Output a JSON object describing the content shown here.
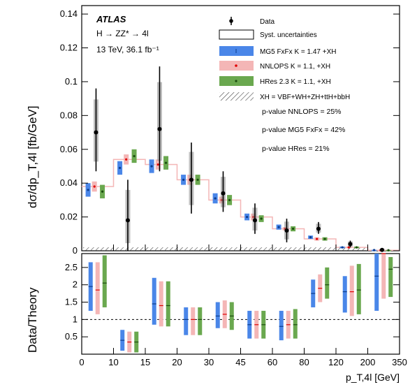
{
  "chart_data": [
    {
      "type": "scatter",
      "panel": "upper",
      "ylabel": "dσ/dp_T,4l [fb/GeV]",
      "ylim": [
        0,
        0.145
      ],
      "yticks": [
        0,
        0.02,
        0.04,
        0.06,
        0.08,
        0.1,
        0.12,
        0.14
      ],
      "ytick_labels": [
        "0",
        "0.02",
        "0.04",
        "0.06",
        "0.08",
        "0.1",
        "0.12",
        "0.14"
      ],
      "x_bin_edges": [
        0,
        10,
        15,
        20,
        30,
        45,
        60,
        80,
        120,
        200,
        350
      ],
      "annotations": {
        "atlas": "ATLAS",
        "process": "H → ZZ* → 4l",
        "energy_lumi": "13 TeV, 36.1 fb⁻¹"
      },
      "legend": [
        {
          "label": "Data",
          "kind": "data"
        },
        {
          "label": "Syst. uncertainties",
          "kind": "box",
          "color": "#ffffff"
        },
        {
          "label": "MG5 FxFx K = 1.47 +XH",
          "kind": "band",
          "color": "#4a86e8"
        },
        {
          "label": "NNLOPS K = 1.1, +XH",
          "kind": "band",
          "color": "#f4b6b6"
        },
        {
          "label": "HRes 2.3 K = 1.1, +XH",
          "kind": "band",
          "color": "#6aa84f"
        },
        {
          "label": "XH = VBF+WH+ZH+ttH+bbH",
          "kind": "hatch",
          "color": "#555555"
        }
      ],
      "pvalues": [
        "p-value NNLOPS = 25%",
        "p-value MG5 FxFx = 42%",
        "p-value HRes = 21%"
      ],
      "series": [
        {
          "name": "Data",
          "values": [
            0.07,
            0.018,
            0.072,
            0.042,
            0.034,
            0.018,
            0.012,
            0.013,
            0.004,
            0.0005
          ],
          "err_low": [
            0.023,
            0.018,
            0.025,
            0.02,
            0.011,
            0.008,
            0.007,
            0.003,
            0.002,
            0.0005
          ],
          "err_high": [
            0.026,
            0.024,
            0.037,
            0.022,
            0.013,
            0.01,
            0.007,
            0.004,
            0.002,
            0.001
          ]
        },
        {
          "name": "MG5 FxFx K = 1.47 +XH",
          "values": [
            0.036,
            0.049,
            0.05,
            0.042,
            0.031,
            0.02,
            0.014,
            0.008,
            0.002,
            0.0004
          ],
          "err": [
            0.004,
            0.004,
            0.004,
            0.003,
            0.003,
            0.002,
            0.0015,
            0.001,
            0.0005,
            0.0002
          ]
        },
        {
          "name": "NNLOPS K = 1.1, +XH",
          "values": [
            0.038,
            0.054,
            0.051,
            0.042,
            0.03,
            0.02,
            0.013,
            0.007,
            0.002,
            0.0003
          ],
          "err": [
            0.003,
            0.003,
            0.003,
            0.003,
            0.002,
            0.002,
            0.001,
            0.001,
            0.0005,
            0.0002
          ]
        },
        {
          "name": "HRes 2.3 K = 1.1, +XH",
          "values": [
            0.035,
            0.056,
            0.052,
            0.042,
            0.03,
            0.019,
            0.013,
            0.007,
            0.002,
            0.0003
          ],
          "err": [
            0.004,
            0.004,
            0.004,
            0.003,
            0.003,
            0.002,
            0.0015,
            0.001,
            0.0005,
            0.0002
          ]
        }
      ]
    },
    {
      "type": "scatter",
      "panel": "lower",
      "ylabel": "Data/Theory",
      "xlabel": "p_T,4l [GeV]",
      "ylim": [
        0,
        2.9
      ],
      "yticks": [
        0.5,
        1,
        1.5,
        2,
        2.5
      ],
      "ytick_labels": [
        "0.5",
        "1",
        "1.5",
        "2",
        "2.5"
      ],
      "xtick_labels": [
        "0",
        "10",
        "15",
        "20",
        "30",
        "45",
        "60",
        "80",
        "120",
        "200",
        "350"
      ],
      "reference_line": 1,
      "series": [
        {
          "name": "MG5 FxFx K = 1.47 +XH",
          "values": [
            1.95,
            0.4,
            1.45,
            1.0,
            1.1,
            0.85,
            0.8,
            1.75,
            1.8,
            2.25
          ],
          "err_low": [
            0.7,
            0.3,
            0.6,
            0.45,
            0.35,
            0.4,
            0.4,
            0.4,
            0.6,
            1.0
          ],
          "err_high": [
            0.7,
            0.3,
            0.75,
            0.35,
            0.4,
            0.4,
            0.45,
            0.4,
            0.45,
            0.8
          ]
        },
        {
          "name": "NNLOPS K = 1.1, +XH",
          "values": [
            1.85,
            0.35,
            1.4,
            1.0,
            1.15,
            0.85,
            0.85,
            1.9,
            1.8,
            2.9
          ],
          "err_low": [
            0.7,
            0.3,
            0.6,
            0.45,
            0.4,
            0.4,
            0.4,
            0.4,
            0.7,
            1.3
          ],
          "err_high": [
            0.8,
            0.3,
            0.7,
            0.35,
            0.4,
            0.4,
            0.4,
            0.4,
            0.75,
            0.1
          ]
        },
        {
          "name": "HRes 2.3 K = 1.1, +XH",
          "values": [
            2.05,
            0.35,
            1.4,
            1.0,
            1.1,
            0.85,
            0.85,
            2.0,
            1.85,
            2.45
          ],
          "err_low": [
            0.7,
            0.3,
            0.6,
            0.45,
            0.4,
            0.4,
            0.4,
            0.4,
            0.7,
            0.8
          ],
          "err_high": [
            0.8,
            0.3,
            0.7,
            0.35,
            0.4,
            0.4,
            0.45,
            0.5,
            0.75,
            0.35
          ]
        }
      ]
    }
  ]
}
